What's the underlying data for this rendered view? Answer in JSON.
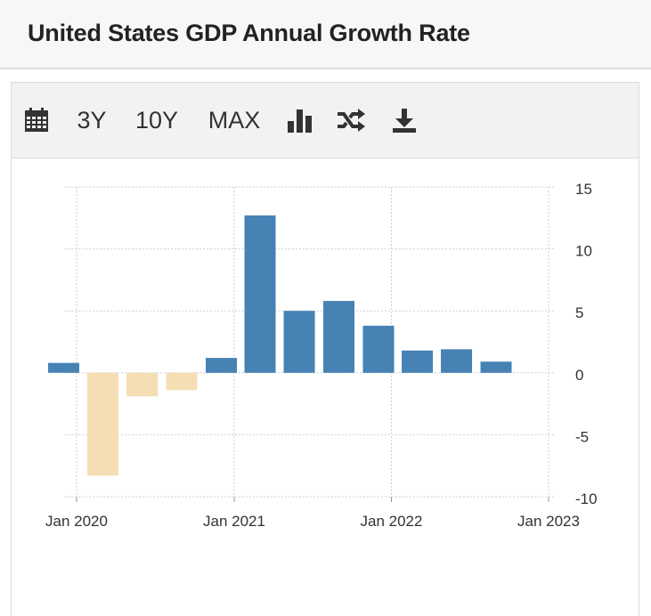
{
  "header": {
    "title": "United States GDP Annual Growth Rate"
  },
  "toolbar": {
    "items": [
      {
        "name": "calendar-button",
        "icon": "calendar-icon"
      },
      {
        "name": "range-3y-button",
        "label": "3Y"
      },
      {
        "name": "range-10y-button",
        "label": "10Y"
      },
      {
        "name": "range-max-button",
        "label": "MAX"
      },
      {
        "name": "chart-type-button",
        "icon": "bar-chart-icon"
      },
      {
        "name": "compare-button",
        "icon": "shuffle-icon"
      },
      {
        "name": "download-button",
        "icon": "download-icon"
      }
    ]
  },
  "colors": {
    "positive": "#4682b4",
    "negative": "#f5deb3",
    "grid": "#cfcfcf"
  },
  "chart_data": {
    "type": "bar",
    "x": [
      "2019-12-31",
      "2020-03-31",
      "2020-06-30",
      "2020-09-30",
      "2020-12-31",
      "2021-03-31",
      "2021-06-30",
      "2021-09-30",
      "2021-12-31",
      "2022-03-31",
      "2022-06-30",
      "2022-09-30",
      "2022-12-31"
    ],
    "values": [
      0.8,
      -8.3,
      -1.9,
      -1.4,
      1.2,
      12.7,
      5.0,
      5.8,
      3.8,
      1.8,
      1.9,
      0.9,
      null
    ],
    "xticks": [
      {
        "date": "2020-01-01",
        "label": "Jan 2020"
      },
      {
        "date": "2021-01-01",
        "label": "Jan 2021"
      },
      {
        "date": "2022-01-01",
        "label": "Jan 2022"
      },
      {
        "date": "2023-01-01",
        "label": "Jan 2023"
      }
    ],
    "yticks": [
      15,
      10,
      5,
      0,
      -5,
      -10
    ],
    "ylim": [
      -10,
      15
    ],
    "grid": true,
    "yaxis_position": "right",
    "title": "",
    "xlabel": "",
    "ylabel": ""
  }
}
